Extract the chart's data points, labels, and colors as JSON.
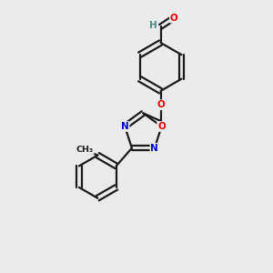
{
  "background_color": "#ebebeb",
  "bond_color": "#1a1a1a",
  "atom_colors": {
    "O": "#e60000",
    "N": "#0000cc",
    "C": "#1a1a1a",
    "H": "#4a8888"
  },
  "lw": 1.6,
  "sep": 0.09
}
